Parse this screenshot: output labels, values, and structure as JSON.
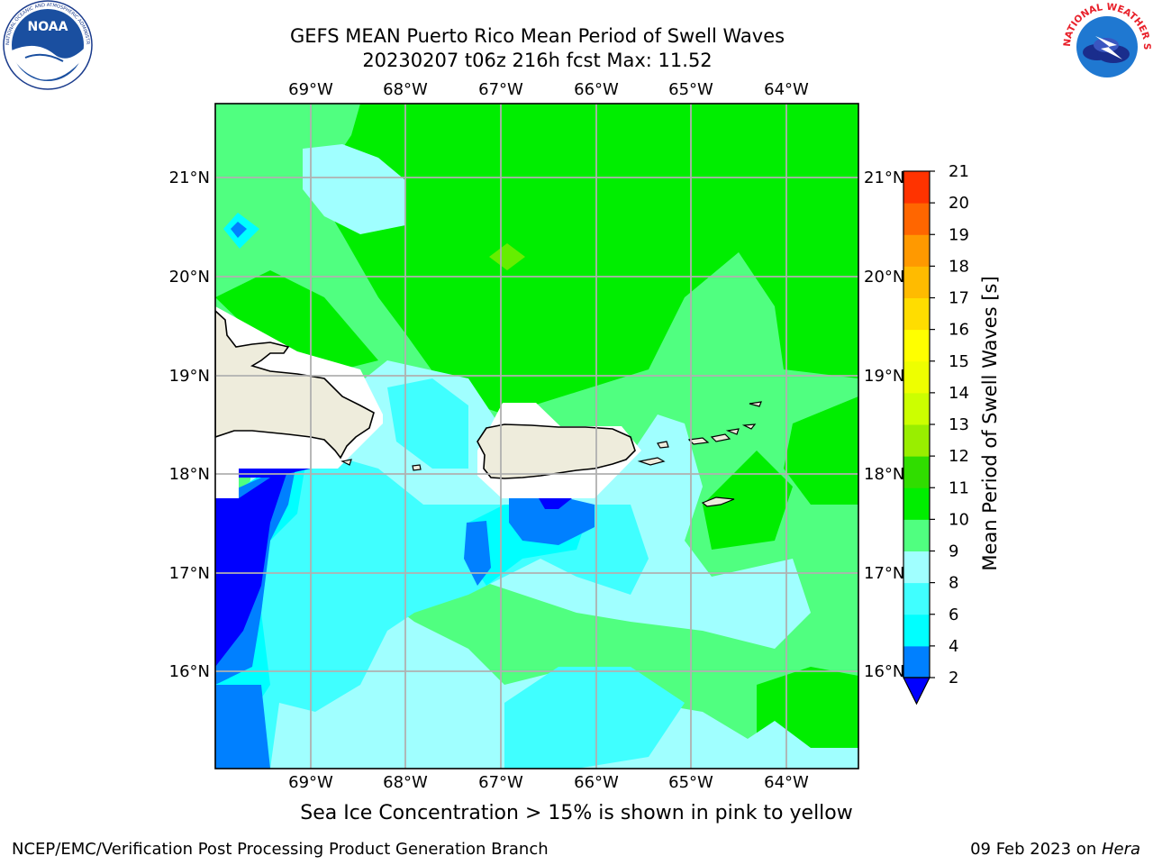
{
  "header": {
    "title_line1": "GEFS MEAN Puerto Rico Mean Period of Swell Waves",
    "title_line2": "20230207 t06z 216h fcst   Max: 11.52"
  },
  "logos": {
    "noaa": {
      "text": "NOAA",
      "ring_text": "NATIONAL OCEANIC AND ATMOSPHERIC ADMINISTRATION · U.S. DEPARTMENT OF COMMERCE"
    },
    "nws": {
      "ring_text": "NATIONAL WEATHER SERVICE"
    }
  },
  "map": {
    "lon_labels": [
      "69°W",
      "68°W",
      "67°W",
      "66°W",
      "65°W",
      "64°W"
    ],
    "lat_labels": [
      "21°N",
      "20°N",
      "19°N",
      "18°N",
      "17°N",
      "16°N"
    ],
    "land_color": "#eeecdc",
    "grid_color": "#b0b0b0"
  },
  "colorbar": {
    "label": "Mean Period of Swell Waves [s]",
    "ticks": [
      "2",
      "4",
      "6",
      "8",
      "9",
      "10",
      "11",
      "12",
      "13",
      "14",
      "15",
      "16",
      "17",
      "18",
      "19",
      "20",
      "21"
    ],
    "colors": [
      "#0080ff",
      "#00ffff",
      "#40ffff",
      "#a0ffff",
      "#50ff80",
      "#00ee00",
      "#30dd00",
      "#99ee00",
      "#ccff00",
      "#eeff00",
      "#ffff00",
      "#ffdd00",
      "#ffbb00",
      "#ff9900",
      "#ff6600",
      "#ff3300"
    ],
    "under_color": "#0000ff"
  },
  "note": "Sea Ice Concentration > 15% is shown in pink to yellow",
  "footer": {
    "left": "NCEP/EMC/Verification Post Processing Product Generation Branch",
    "date": "09 Feb 2023 on ",
    "machine": "Hera"
  }
}
